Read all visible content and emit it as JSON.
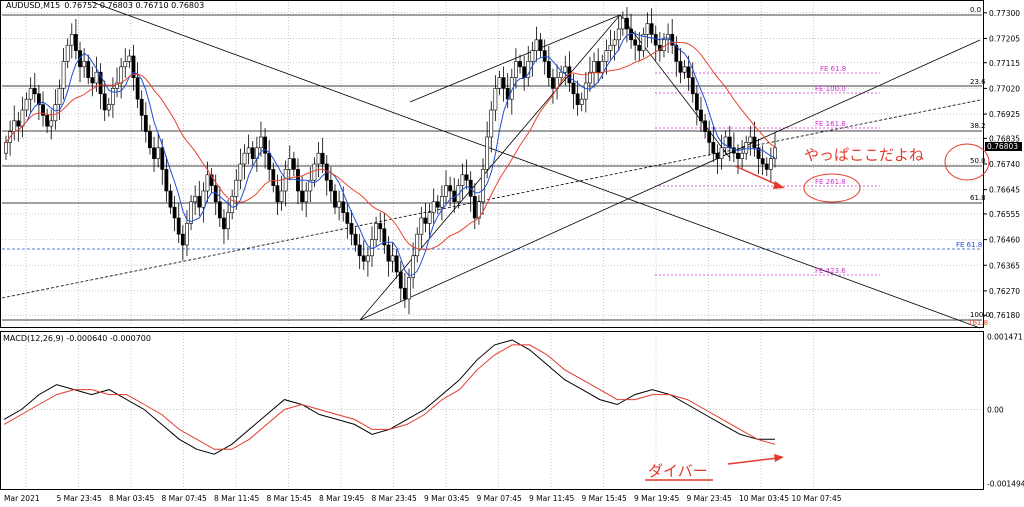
{
  "header": {
    "symbol": "AUDUSD,M15",
    "ohlc": "0.76752 0.76803 0.76710 0.76803",
    "macd_label": "MACD(12,26,9) -0.000640 -0.000700"
  },
  "current_price": "0.76803",
  "notes": {
    "main": "やっぱここだよね",
    "divergence": "ダイバー"
  },
  "colors": {
    "candle": "#000000",
    "ma_fast": "#1f4fd8",
    "ma_slow": "#e8452c",
    "fib_fe": "#cc33cc",
    "note": "#e23b2e",
    "signal": "#e23b2e"
  },
  "chart_data": [
    {
      "type": "candlestick",
      "title": "",
      "x_tick_labels": [
        "Mar 2021",
        "5 Mar 23:45",
        "8 Mar 03:45",
        "8 Mar 07:45",
        "8 Mar 11:45",
        "8 Mar 15:45",
        "8 Mar 19:45",
        "8 Mar 23:45",
        "9 Mar 03:45",
        "9 Mar 07:45",
        "9 Mar 11:45",
        "9 Mar 15:45",
        "9 Mar 19:45",
        "9 Mar 23:45",
        "10 Mar 03:45",
        "10 Mar 07:45"
      ],
      "y_tick_labels": [
        "0.77300",
        "0.77205",
        "0.77115",
        "0.77020",
        "0.76925",
        "0.76835",
        "0.76740",
        "0.76645",
        "0.76555",
        "0.76460",
        "0.76365",
        "0.76270",
        "0.76180"
      ],
      "ylim": [
        0.7614,
        0.7734
      ],
      "series": [
        {
          "kind": "candles",
          "closes": [
            0.7682,
            0.7686,
            0.769,
            0.7688,
            0.7694,
            0.7698,
            0.7702,
            0.77,
            0.7696,
            0.7692,
            0.7688,
            0.769,
            0.7696,
            0.7702,
            0.7712,
            0.7718,
            0.7722,
            0.7716,
            0.771,
            0.7712,
            0.7706,
            0.7704,
            0.7708,
            0.77,
            0.7694,
            0.7696,
            0.7702,
            0.7704,
            0.771,
            0.7712,
            0.7714,
            0.7706,
            0.7698,
            0.7692,
            0.7686,
            0.768,
            0.7676,
            0.768,
            0.7672,
            0.7664,
            0.7658,
            0.7654,
            0.7648,
            0.7644,
            0.7652,
            0.766,
            0.7662,
            0.7658,
            0.7664,
            0.767,
            0.7666,
            0.766,
            0.7654,
            0.765,
            0.7656,
            0.7662,
            0.7668,
            0.7674,
            0.7678,
            0.768,
            0.7676,
            0.768,
            0.7684,
            0.7678,
            0.7672,
            0.7666,
            0.766,
            0.7664,
            0.7672,
            0.7676,
            0.7672,
            0.7664,
            0.766,
            0.7664,
            0.7668,
            0.7674,
            0.7678,
            0.7674,
            0.7668,
            0.7664,
            0.7658,
            0.766,
            0.7656,
            0.7652,
            0.7648,
            0.7644,
            0.764,
            0.7638,
            0.764,
            0.7646,
            0.7652,
            0.765,
            0.7644,
            0.7638,
            0.764,
            0.7634,
            0.7628,
            0.7624,
            0.7632,
            0.764,
            0.7648,
            0.7654,
            0.7652,
            0.7656,
            0.766,
            0.7658,
            0.7662,
            0.7666,
            0.7664,
            0.766,
            0.7666,
            0.767,
            0.7668,
            0.7662,
            0.7654,
            0.766,
            0.7672,
            0.7684,
            0.7694,
            0.7702,
            0.7706,
            0.7702,
            0.7698,
            0.7706,
            0.7712,
            0.771,
            0.7706,
            0.7712,
            0.7716,
            0.772,
            0.7716,
            0.7712,
            0.7706,
            0.7702,
            0.7706,
            0.7708,
            0.771,
            0.7704,
            0.77,
            0.7696,
            0.7698,
            0.7704,
            0.7708,
            0.7712,
            0.7708,
            0.7712,
            0.7716,
            0.7718,
            0.772,
            0.7724,
            0.7728,
            0.7724,
            0.772,
            0.7718,
            0.7716,
            0.7722,
            0.7726,
            0.7722,
            0.7718,
            0.7716,
            0.772,
            0.7722,
            0.7718,
            0.7712,
            0.7708,
            0.771,
            0.7706,
            0.77,
            0.7694,
            0.769,
            0.7686,
            0.7682,
            0.7678,
            0.7676,
            0.768,
            0.7684,
            0.768,
            0.7678,
            0.7676,
            0.7678,
            0.7682,
            0.7684,
            0.768,
            0.7676,
            0.7674,
            0.7672,
            0.7676,
            0.768
          ]
        },
        {
          "kind": "ma",
          "name": "",
          "color_key": "ma_fast"
        },
        {
          "kind": "ma",
          "name": "",
          "color_key": "ma_slow"
        }
      ],
      "fibonacci_right": [
        "0.0",
        "23.6",
        "38.2",
        "50.0",
        "61.8",
        "100.0",
        "161.8"
      ],
      "fibonacci_expansion": [
        "FE 61.8",
        "FE 100.0",
        "FE 161.8",
        "FE 261.8",
        "FE 61.8",
        "FE 423.6"
      ]
    },
    {
      "type": "line",
      "title": "MACD(12,26,9) -0.000640 -0.000700",
      "y_tick_labels": [
        "0.001471",
        "0.00",
        "-0.001494"
      ],
      "ylim": [
        -0.00158,
        0.00152
      ],
      "series": [
        {
          "name": "",
          "color_key": "candle",
          "values": [
            -0.0002,
            0.0,
            0.0003,
            0.0005,
            0.0004,
            0.0003,
            0.0004,
            0.0002,
            0.0,
            -0.0003,
            -0.0006,
            -0.0008,
            -0.0009,
            -0.0007,
            -0.0004,
            -0.0001,
            0.0002,
            0.0001,
            -0.0001,
            -0.0002,
            -0.0003,
            -0.0005,
            -0.0004,
            -0.0002,
            0.0,
            0.0003,
            0.0006,
            0.001,
            0.0013,
            0.0014,
            0.0012,
            0.0009,
            0.0006,
            0.0004,
            0.0002,
            0.0001,
            0.0003,
            0.0004,
            0.0003,
            0.0001,
            -0.0001,
            -0.0003,
            -0.0005,
            -0.0006,
            -0.0006
          ]
        },
        {
          "name": "",
          "color_key": "signal",
          "values": [
            -0.0003,
            -0.0001,
            0.0001,
            0.0003,
            0.0004,
            0.0004,
            0.0003,
            0.0003,
            0.0001,
            -0.0001,
            -0.0004,
            -0.0006,
            -0.0008,
            -0.0008,
            -0.0006,
            -0.0003,
            0.0,
            0.0001,
            0.0,
            -0.0001,
            -0.0002,
            -0.0004,
            -0.0004,
            -0.0003,
            -0.0001,
            0.0002,
            0.0004,
            0.0008,
            0.0011,
            0.0013,
            0.0013,
            0.0011,
            0.0008,
            0.0006,
            0.0004,
            0.0002,
            0.0002,
            0.0003,
            0.0003,
            0.0002,
            0.0,
            -0.0002,
            -0.0004,
            -0.0006,
            -0.0007
          ]
        }
      ]
    }
  ]
}
